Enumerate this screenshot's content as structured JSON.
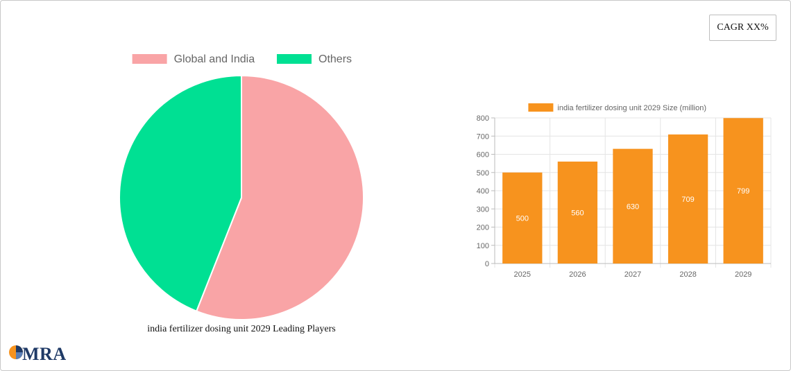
{
  "badge": {
    "label": "CAGR XX%"
  },
  "brand": {
    "name": "MRA"
  },
  "chart_data": [
    {
      "type": "pie",
      "title": "india fertilizer dosing unit 2029 Leading Players",
      "labels": [
        "Global and India",
        "Others"
      ],
      "values": [
        56,
        44
      ],
      "colors": [
        "#f9a4a6",
        "#00e093"
      ],
      "legend_position": "top"
    },
    {
      "type": "bar",
      "title": "",
      "categories": [
        "2025",
        "2026",
        "2027",
        "2028",
        "2029"
      ],
      "series": [
        {
          "name": "india fertilizer dosing unit 2029 Size (million)",
          "values": [
            500,
            560,
            630,
            709,
            799
          ],
          "color": "#f7931e"
        }
      ],
      "xlabel": "",
      "ylabel": "",
      "ylim": [
        0,
        800
      ],
      "yticks": [
        0,
        100,
        200,
        300,
        400,
        500,
        600,
        700,
        800
      ],
      "grid": true,
      "legend_position": "top"
    }
  ]
}
